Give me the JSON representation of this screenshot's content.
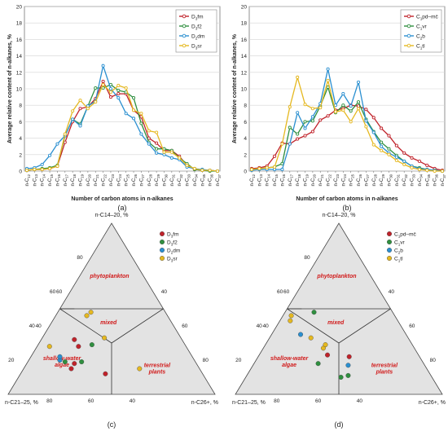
{
  "chart_data": [
    {
      "type": "line",
      "panel_label": "(a)",
      "xlabel": "Number of carbon atoms in n-alkanes",
      "ylabel": "Average relative content of n-alkanes, %",
      "ylim": [
        0,
        20
      ],
      "yticks": [
        "0",
        "2",
        "4",
        "6",
        "8",
        "10",
        "12",
        "14",
        "16",
        "18",
        "20"
      ],
      "grid": true,
      "legend_position": "top-right",
      "categories": [
        "n-C12",
        "n-C13",
        "n-C14",
        "n-C15",
        "n-C16",
        "n-C17",
        "n-C18",
        "n-C19",
        "n-C20",
        "n-C21",
        "n-C22",
        "n-C23",
        "n-C24",
        "n-C25",
        "n-C26",
        "n-C27",
        "n-C28",
        "n-C29",
        "n-C30",
        "n-C31",
        "n-C32",
        "n-C33",
        "n-C34",
        "n-C35",
        "n-C36",
        "n-C37"
      ],
      "series": [
        {
          "name": "D3fm",
          "color": "#c0222a",
          "values": [
            0.1,
            0.2,
            0.2,
            0.3,
            0.6,
            3.5,
            6.0,
            7.6,
            7.8,
            8.8,
            10.9,
            9.0,
            9.4,
            9.4,
            7.4,
            6.6,
            4.0,
            3.4,
            2.5,
            2.5,
            1.8,
            0.7,
            0.2,
            0.1,
            0.1,
            0.0
          ]
        },
        {
          "name": "D3f2",
          "color": "#2f8f3f",
          "values": [
            0.1,
            0.2,
            0.3,
            0.4,
            0.7,
            4.3,
            6.3,
            5.7,
            7.9,
            10.1,
            10.1,
            10.5,
            9.8,
            9.6,
            8.9,
            5.8,
            3.5,
            2.7,
            2.7,
            2.5,
            1.6,
            0.9,
            0.2,
            0.1,
            0.0,
            0.0
          ]
        },
        {
          "name": "D2dm",
          "color": "#2a8fd0",
          "values": [
            0.3,
            0.4,
            0.8,
            1.9,
            3.3,
            4.3,
            6.3,
            5.5,
            7.9,
            8.5,
            12.8,
            10.0,
            8.9,
            7.0,
            6.4,
            4.5,
            3.3,
            2.2,
            2.0,
            1.6,
            1.4,
            0.5,
            0.3,
            0.2,
            0.1,
            0.0
          ]
        },
        {
          "name": "D3sr",
          "color": "#e5b820",
          "values": [
            0.1,
            0.2,
            0.2,
            0.3,
            0.6,
            4.5,
            7.3,
            8.6,
            7.6,
            8.4,
            10.5,
            9.6,
            10.4,
            10.1,
            7.4,
            7.0,
            4.9,
            4.7,
            2.3,
            2.3,
            1.6,
            0.7,
            0.3,
            0.1,
            0.1,
            0.0
          ]
        }
      ]
    },
    {
      "type": "line",
      "panel_label": "(b)",
      "xlabel": "Number of carbon atoms in n-alkanes",
      "ylabel": "Average relative content of n-alkanes, %",
      "ylim": [
        0,
        20
      ],
      "yticks": [
        "0",
        "2",
        "4",
        "6",
        "8",
        "10",
        "12",
        "14",
        "16",
        "18",
        "20"
      ],
      "grid": true,
      "legend_position": "top-right",
      "categories": [
        "n-C12",
        "n-C13",
        "n-C14",
        "n-C15",
        "n-C16",
        "n-C17",
        "n-C18",
        "n-C19",
        "n-C20",
        "n-C21",
        "n-C22",
        "n-C23",
        "n-C24",
        "n-C25",
        "n-C26",
        "n-C27",
        "n-C28",
        "n-C29",
        "n-C30",
        "n-C31",
        "n-C32",
        "n-C33",
        "n-C34",
        "n-C35",
        "n-C36",
        "n-C37"
      ],
      "series": [
        {
          "name": "C1pd–mč",
          "color": "#c0222a",
          "values": [
            0.3,
            0.4,
            0.6,
            1.8,
            3.4,
            3.3,
            3.9,
            4.3,
            4.8,
            6.2,
            6.7,
            7.4,
            7.6,
            8.0,
            7.9,
            7.5,
            6.5,
            5.2,
            4.3,
            3.1,
            2.2,
            1.6,
            1.2,
            0.7,
            0.3,
            0.1
          ]
        },
        {
          "name": "C1vr",
          "color": "#2f8f3f",
          "values": [
            0.2,
            0.3,
            0.4,
            0.5,
            0.9,
            5.3,
            4.5,
            6.0,
            6.1,
            7.9,
            10.2,
            7.1,
            8.0,
            7.3,
            8.4,
            6.3,
            4.8,
            3.5,
            2.7,
            1.9,
            1.2,
            0.6,
            0.4,
            0.2,
            0.1,
            0.0
          ]
        },
        {
          "name": "C2b",
          "color": "#2a8fd0",
          "values": [
            0.1,
            0.2,
            0.2,
            0.2,
            0.2,
            3.3,
            7.1,
            5.2,
            6.6,
            8.2,
            12.4,
            8.0,
            9.4,
            7.9,
            10.8,
            6.1,
            4.7,
            3.0,
            2.2,
            1.7,
            1.2,
            0.6,
            0.3,
            0.2,
            0.1,
            0.0
          ]
        },
        {
          "name": "C1tl",
          "color": "#e5b820",
          "values": [
            0.2,
            0.3,
            0.4,
            0.5,
            3.3,
            7.8,
            11.4,
            8.1,
            7.6,
            7.7,
            11.0,
            7.2,
            7.4,
            6.0,
            7.6,
            5.4,
            3.2,
            2.5,
            2.0,
            1.3,
            0.8,
            0.4,
            0.2,
            0.1,
            0.0,
            0.0
          ]
        }
      ]
    },
    {
      "type": "scatter",
      "subtype": "ternary",
      "panel_label": "(c)",
      "axis_labels": {
        "top": "n-C14–20, %",
        "left": "n-C21–25, %",
        "right": "n-C26+, %"
      },
      "ticks": {
        "top_side": [
          "40",
          "60",
          "80"
        ],
        "right_side": [
          "40",
          "60",
          "80"
        ],
        "left_axis": [
          "20",
          "40",
          "60"
        ],
        "bottom_axis": [
          "80",
          "60",
          "40"
        ]
      },
      "regions": [
        "phytoplankton",
        "mixed",
        "shallow-water algae",
        "terrestrial plants"
      ],
      "legend_position": "top-right",
      "series": [
        {
          "name": "D3fm",
          "color": "#c0222a",
          "points": [
            [
              32,
              52,
              16
            ],
            [
              28,
              52,
              20
            ],
            [
              18,
              59,
              23
            ],
            [
              15,
              62,
              23
            ],
            [
              12,
              47,
              41
            ]
          ]
        },
        {
          "name": "D3f2",
          "color": "#2f8f3f",
          "points": [
            [
              29,
              45,
              26
            ],
            [
              19,
              55,
              26
            ],
            [
              19,
              63,
              18
            ]
          ]
        },
        {
          "name": "D2dm",
          "color": "#2a8fd0",
          "points": [
            [
              20,
              65,
              15
            ],
            [
              22,
              64,
              14
            ]
          ]
        },
        {
          "name": "D3sr",
          "color": "#e5b820",
          "points": [
            [
              48,
              36,
              16
            ],
            [
              46,
              39,
              15
            ],
            [
              33,
              37,
              30
            ],
            [
              28,
              66,
              6
            ],
            [
              15,
              29,
              56
            ]
          ]
        }
      ]
    },
    {
      "type": "scatter",
      "subtype": "ternary",
      "panel_label": "(d)",
      "axis_labels": {
        "top": "n-C14–20, %",
        "left": "n-C21–25, %",
        "right": "n-C26+, %"
      },
      "ticks": {
        "top_side": [
          "40",
          "60",
          "80"
        ],
        "right_side": [
          "40",
          "60",
          "80"
        ],
        "left_axis": [
          "20",
          "40",
          "60"
        ],
        "bottom_axis": [
          "80",
          "60",
          "40"
        ]
      },
      "regions": [
        "phytoplankton",
        "mixed",
        "shallow-water algae",
        "terrestrial plants"
      ],
      "legend_position": "top-right",
      "series": [
        {
          "name": "C1pd–mč",
          "color": "#c0222a",
          "points": [
            [
              23,
              44,
              33
            ],
            [
              22,
              34,
              44
            ]
          ]
        },
        {
          "name": "C1vr",
          "color": "#2f8f3f",
          "points": [
            [
              18,
              51,
              31
            ],
            [
              10,
              44,
              46
            ],
            [
              11,
              40,
              49
            ],
            [
              48,
              38,
              14
            ]
          ]
        },
        {
          "name": "C2b",
          "color": "#2a8fd0",
          "points": [
            [
              35,
              51,
              14
            ],
            [
              17,
              37,
              46
            ]
          ]
        },
        {
          "name": "C1tl",
          "color": "#e5b820",
          "points": [
            [
              43,
              52,
              5
            ],
            [
              46,
              50,
              4
            ],
            [
              33,
              47,
              20
            ],
            [
              27,
              44,
              29
            ],
            [
              29,
              42,
              29
            ]
          ]
        }
      ]
    }
  ]
}
